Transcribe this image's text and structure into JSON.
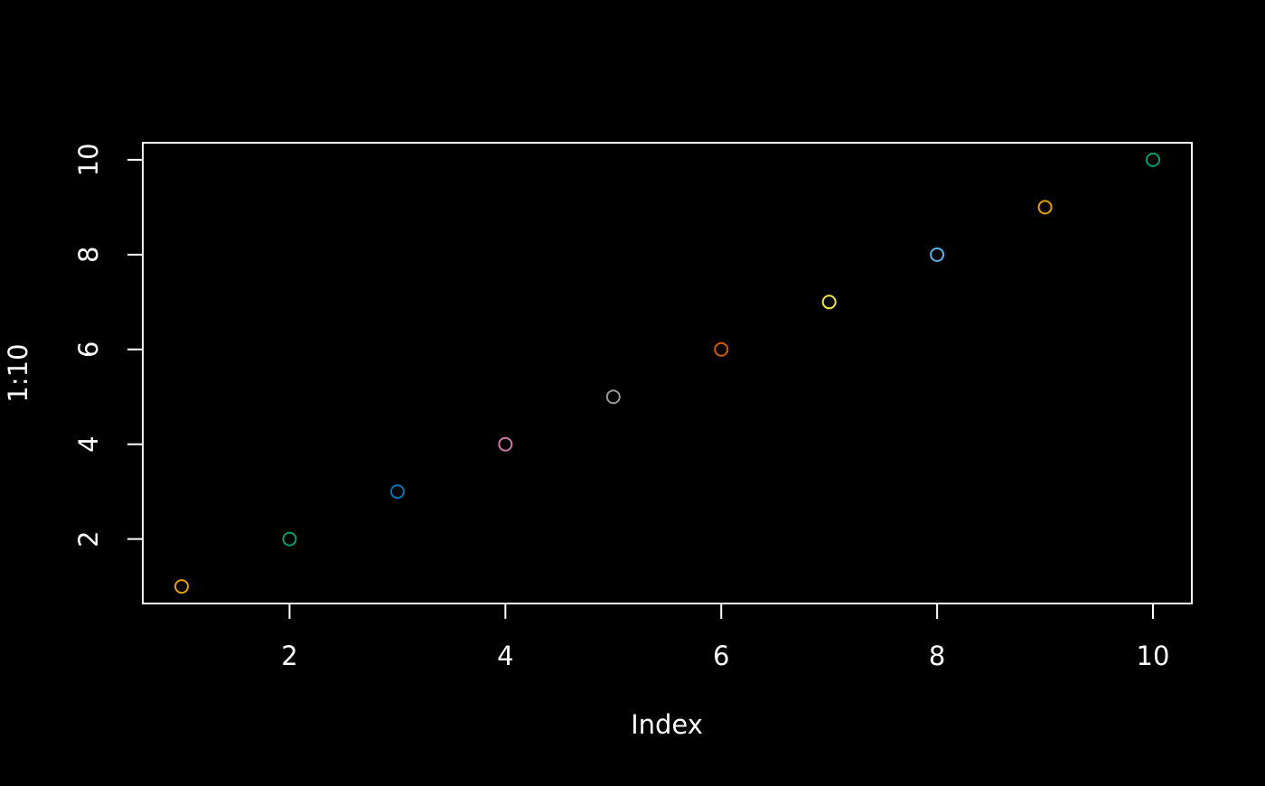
{
  "chart_data": {
    "type": "scatter",
    "x_label": "Index",
    "y_label": "1:10",
    "x": [
      1,
      2,
      3,
      4,
      5,
      6,
      7,
      8,
      9,
      10
    ],
    "values": [
      1,
      2,
      3,
      4,
      5,
      6,
      7,
      8,
      9,
      10
    ],
    "colors": [
      "#E69F00",
      "#009E73",
      "#0072B2",
      "#CC79A7",
      "#999999",
      "#D55E00",
      "#F0E442",
      "#56B4E9",
      "#E69F00",
      "#009E73"
    ],
    "xlim": [
      0.64,
      10.36
    ],
    "ylim": [
      0.64,
      10.36
    ],
    "xticks": [
      2,
      4,
      6,
      8,
      10
    ],
    "yticks": [
      2,
      4,
      6,
      8,
      10
    ],
    "grid": false
  }
}
